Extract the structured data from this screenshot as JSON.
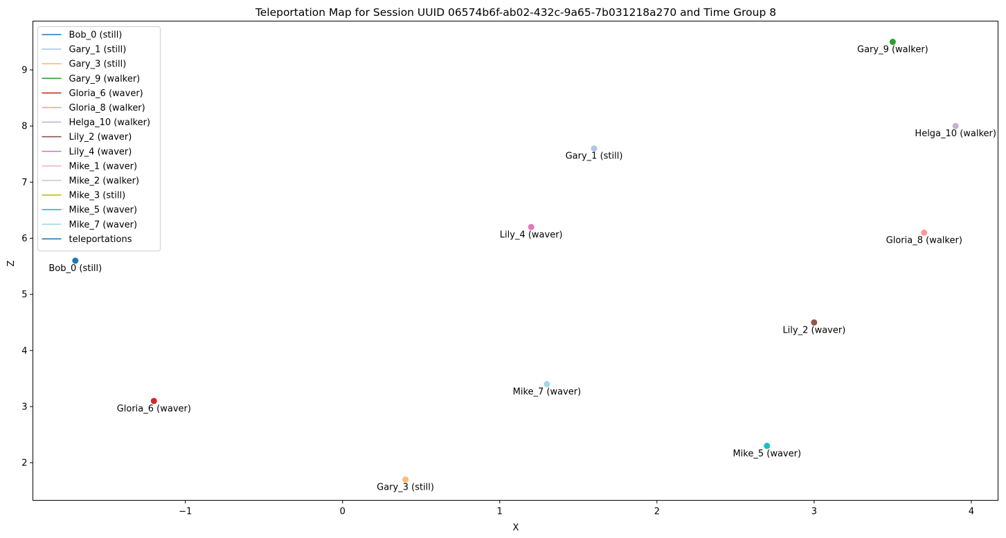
{
  "chart_data": {
    "type": "scatter",
    "title": "Teleportation Map for Session UUID 06574b6f-ab02-432c-9a65-7b031218a270 and Time Group 8",
    "xlabel": "X",
    "ylabel": "Z",
    "xlim": [
      -1.97,
      4.17
    ],
    "ylim": [
      1.33,
      9.87
    ],
    "xticks": [
      -1,
      0,
      1,
      2,
      3,
      4
    ],
    "yticks": [
      2,
      3,
      4,
      5,
      6,
      7,
      8,
      9
    ],
    "xtick_labels": [
      "−1",
      "0",
      "1",
      "2",
      "3",
      "4"
    ],
    "ytick_labels": [
      "2",
      "3",
      "4",
      "5",
      "6",
      "7",
      "8",
      "9"
    ],
    "grid": false,
    "legend_position": "upper-left",
    "series": [
      {
        "name": "Bob_0 (still)",
        "color": "#1f77b4",
        "x": -1.7,
        "z": 5.6
      },
      {
        "name": "Gary_1 (still)",
        "color": "#aec7e8",
        "x": 1.6,
        "z": 7.6
      },
      {
        "name": "Gary_3 (still)",
        "color": "#ffbb78",
        "x": 0.4,
        "z": 1.7
      },
      {
        "name": "Gary_9 (walker)",
        "color": "#2ca02c",
        "x": 3.5,
        "z": 9.5
      },
      {
        "name": "Gloria_6 (waver)",
        "color": "#d62728",
        "x": -1.2,
        "z": 3.1
      },
      {
        "name": "Gloria_8 (walker)",
        "color": "#ff9896",
        "x": 3.7,
        "z": 6.1
      },
      {
        "name": "Helga_10 (walker)",
        "color": "#c5b0d5",
        "x": 3.9,
        "z": 8.0
      },
      {
        "name": "Lily_2 (waver)",
        "color": "#8c564b",
        "x": 3.0,
        "z": 4.5
      },
      {
        "name": "Lily_4 (waver)",
        "color": "#e377c2",
        "x": 1.2,
        "z": 6.2
      },
      {
        "name": "Mike_1 (waver)",
        "color": "#f7b6d2",
        "x": null,
        "z": null
      },
      {
        "name": "Mike_2 (walker)",
        "color": "#c7c7c7",
        "x": null,
        "z": null
      },
      {
        "name": "Mike_3 (still)",
        "color": "#bcbd22",
        "x": null,
        "z": null
      },
      {
        "name": "Mike_5 (waver)",
        "color": "#17becf",
        "x": 2.7,
        "z": 2.3
      },
      {
        "name": "Mike_7 (waver)",
        "color": "#9edae5",
        "x": 1.3,
        "z": 3.4
      },
      {
        "name": "teleportations",
        "color": "#1f77b4",
        "x": null,
        "z": null
      }
    ]
  }
}
